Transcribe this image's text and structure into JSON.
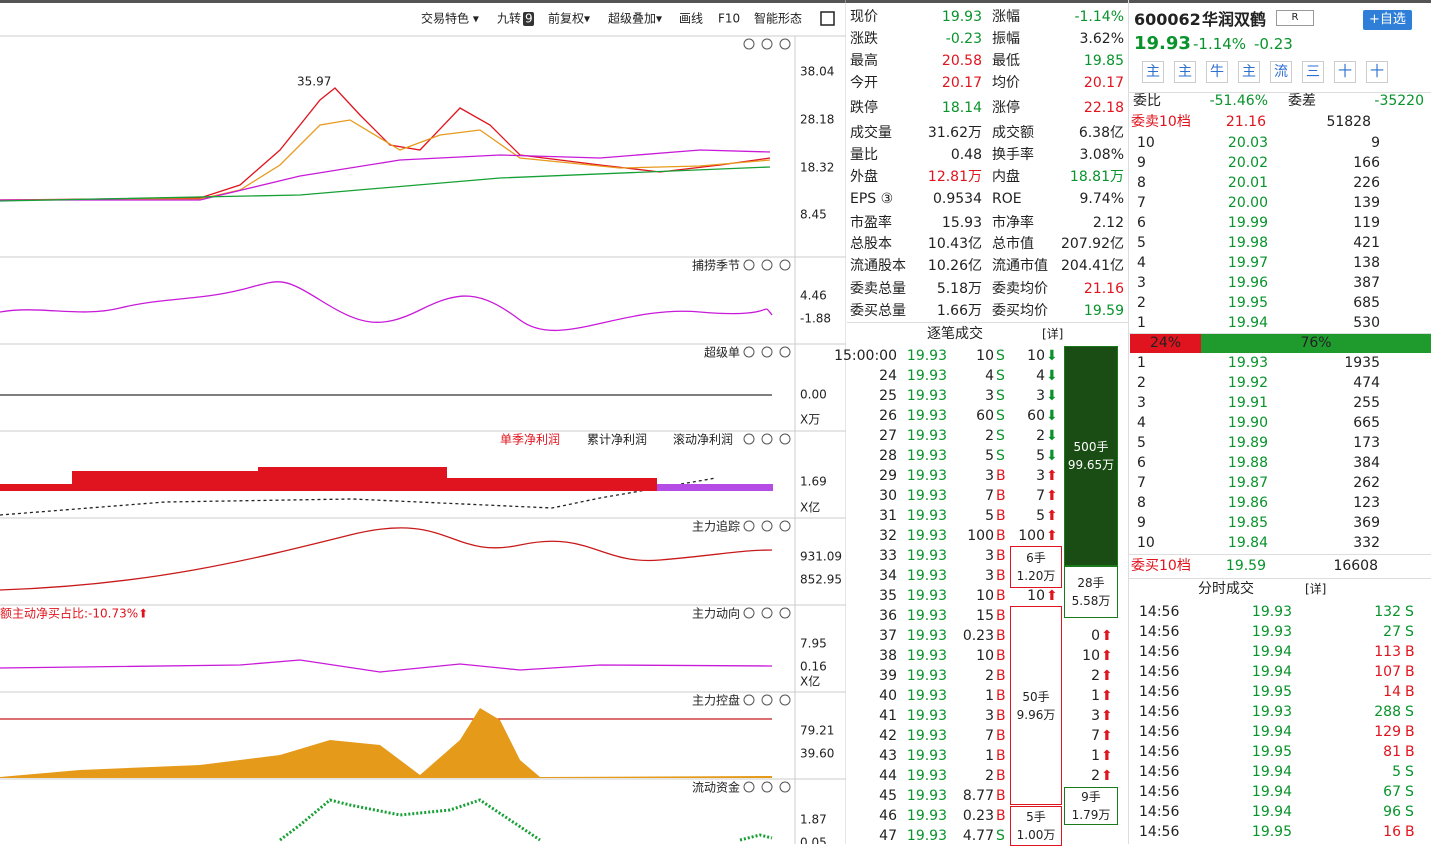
{
  "toolbar": {
    "items": [
      "交易特色 ▾",
      "九转",
      "前复权▾",
      "超级叠加▾",
      "画线",
      "F10",
      "智能形态"
    ],
    "badge": "9"
  },
  "panels": [
    {
      "ticks": [
        "38.04",
        "28.18",
        "18.32",
        "8.45"
      ],
      "annotation": "35.97"
    },
    {
      "title": "捕捞季节",
      "ticks": [
        "4.46",
        "-1.88"
      ]
    },
    {
      "title": "超级单",
      "ticks": [
        "0.00",
        "X万"
      ]
    },
    {
      "titles": [
        "单季净利润",
        "累计净利润",
        "滚动净利润"
      ],
      "ticks": [
        "1.69",
        "X亿"
      ]
    },
    {
      "title": "主力追踪",
      "ticks": [
        "931.09",
        "852.95"
      ]
    },
    {
      "title": "主力动向",
      "note": "额主动净买占比:-10.73%⬆",
      "ticks": [
        "7.95",
        "0.16",
        "X亿"
      ]
    },
    {
      "title": "主力控盘",
      "ticks": [
        "79.21",
        "39.60"
      ]
    },
    {
      "title": "流动资金",
      "ticks": [
        "1.87",
        "0.05"
      ]
    }
  ],
  "quote": [
    [
      [
        "现价",
        "19.93",
        "green"
      ],
      [
        "涨幅",
        "-1.14%",
        "green"
      ]
    ],
    [
      [
        "涨跌",
        "-0.23",
        "green"
      ],
      [
        "振幅",
        "3.62%",
        "black"
      ]
    ],
    [
      [
        "最高",
        "20.58",
        "red"
      ],
      [
        "最低",
        "19.85",
        "green"
      ]
    ],
    [
      [
        "今开",
        "20.17",
        "red"
      ],
      [
        "均价",
        "20.17",
        "red"
      ]
    ],
    [
      [
        "跌停",
        "18.14",
        "green"
      ],
      [
        "涨停",
        "22.18",
        "red"
      ]
    ],
    [
      [
        "成交量",
        "31.62万",
        "black"
      ],
      [
        "成交额",
        "6.38亿",
        "black"
      ]
    ],
    [
      [
        "量比",
        "0.48",
        "black"
      ],
      [
        "换手率",
        "3.08%",
        "black"
      ]
    ],
    [
      [
        "外盘",
        "12.81万",
        "red"
      ],
      [
        "内盘",
        "18.81万",
        "green"
      ]
    ],
    [
      [
        "EPS ③",
        "0.9534",
        "black"
      ],
      [
        "ROE",
        "9.74%",
        "black"
      ]
    ],
    [
      [
        "市盈率",
        "15.93",
        "black"
      ],
      [
        "市净率",
        "2.12",
        "black"
      ]
    ],
    [
      [
        "总股本",
        "10.43亿",
        "black"
      ],
      [
        "总市值",
        "207.92亿",
        "black"
      ]
    ],
    [
      [
        "流通股本",
        "10.26亿",
        "black"
      ],
      [
        "流通市值",
        "204.41亿",
        "black"
      ]
    ],
    [
      [
        "委卖总量",
        "5.18万",
        "black"
      ],
      [
        "委卖均价",
        "21.16",
        "red"
      ]
    ],
    [
      [
        "委买总量",
        "1.66万",
        "black"
      ],
      [
        "委买均价",
        "19.59",
        "green"
      ]
    ]
  ],
  "ticks": {
    "title": "逐笔成交",
    "detail": "[详]",
    "rows": [
      [
        "15:00:00",
        "19.93",
        "10",
        "S",
        "10"
      ],
      [
        "24",
        "19.93",
        "4",
        "S",
        "4"
      ],
      [
        "25",
        "19.93",
        "3",
        "S",
        "3"
      ],
      [
        "26",
        "19.93",
        "60",
        "S",
        "60"
      ],
      [
        "27",
        "19.93",
        "2",
        "S",
        "2"
      ],
      [
        "28",
        "19.93",
        "5",
        "S",
        "5"
      ],
      [
        "29",
        "19.93",
        "3",
        "B",
        "3"
      ],
      [
        "30",
        "19.93",
        "7",
        "B",
        "7"
      ],
      [
        "31",
        "19.93",
        "5",
        "B",
        "5"
      ],
      [
        "32",
        "19.93",
        "100",
        "B",
        "100"
      ],
      [
        "33",
        "19.93",
        "3",
        "B"
      ],
      [
        "34",
        "19.93",
        "3",
        "B"
      ],
      [
        "35",
        "19.93",
        "10",
        "B",
        "10"
      ],
      [
        "36",
        "19.93",
        "15",
        "B"
      ],
      [
        "37",
        "19.93",
        "0.23",
        "B",
        "0"
      ],
      [
        "38",
        "19.93",
        "10",
        "B",
        "10"
      ],
      [
        "39",
        "19.93",
        "2",
        "B",
        "2"
      ],
      [
        "40",
        "19.93",
        "1",
        "B",
        "1"
      ],
      [
        "41",
        "19.93",
        "3",
        "B",
        "3"
      ],
      [
        "42",
        "19.93",
        "7",
        "B",
        "7"
      ],
      [
        "43",
        "19.93",
        "1",
        "B",
        "1"
      ],
      [
        "44",
        "19.93",
        "2",
        "B",
        "2"
      ],
      [
        "45",
        "19.93",
        "8.77",
        "B"
      ],
      [
        "46",
        "19.93",
        "0.23",
        "B"
      ],
      [
        "47",
        "19.93",
        "4.77",
        "S"
      ]
    ],
    "boxes": [
      [
        "500手",
        "99.65万"
      ],
      [
        "28手",
        "5.58万"
      ],
      [
        "6手",
        "1.20万"
      ],
      [
        "50手",
        "9.96万"
      ],
      [
        "9手",
        "1.79万"
      ],
      [
        "5手",
        "1.00万"
      ]
    ]
  },
  "stock": {
    "code": "600062",
    "name": "华润双鹤",
    "tag": "R",
    "button": "+自选",
    "price": "19.93",
    "pct": "-1.14%",
    "chg": "-0.23",
    "tabs": [
      "主",
      "主",
      "牛",
      "主",
      "流",
      "三",
      "十",
      "十"
    ]
  },
  "book": {
    "ratio_label": "委比",
    "ratio": "-51.46%",
    "diff_label": "委差",
    "diff": "-35220",
    "sell_label": "委卖10档",
    "sell_avg": "21.16",
    "sell_total": "51828",
    "sell": [
      [
        "10",
        "20.03",
        "9"
      ],
      [
        "9",
        "20.02",
        "166"
      ],
      [
        "8",
        "20.01",
        "226"
      ],
      [
        "7",
        "20.00",
        "139"
      ],
      [
        "6",
        "19.99",
        "119"
      ],
      [
        "5",
        "19.98",
        "421"
      ],
      [
        "4",
        "19.97",
        "138"
      ],
      [
        "3",
        "19.96",
        "387"
      ],
      [
        "2",
        "19.95",
        "685"
      ],
      [
        "1",
        "19.94",
        "530"
      ]
    ],
    "bar": [
      "24%",
      "76%"
    ],
    "buy": [
      [
        "1",
        "19.93",
        "1935"
      ],
      [
        "2",
        "19.92",
        "474"
      ],
      [
        "3",
        "19.91",
        "255"
      ],
      [
        "4",
        "19.90",
        "665"
      ],
      [
        "5",
        "19.89",
        "173"
      ],
      [
        "6",
        "19.88",
        "384"
      ],
      [
        "7",
        "19.87",
        "262"
      ],
      [
        "8",
        "19.86",
        "123"
      ],
      [
        "9",
        "19.85",
        "369"
      ],
      [
        "10",
        "19.84",
        "332"
      ]
    ],
    "buy_label": "委买10档",
    "buy_avg": "19.59",
    "buy_total": "16608"
  },
  "minute": {
    "title": "分时成交",
    "detail": "[详]",
    "rows": [
      [
        "14:56",
        "19.93",
        "132",
        "S"
      ],
      [
        "14:56",
        "19.93",
        "27",
        "S"
      ],
      [
        "14:56",
        "19.94",
        "113",
        "B"
      ],
      [
        "14:56",
        "19.94",
        "107",
        "B"
      ],
      [
        "14:56",
        "19.95",
        "14",
        "B"
      ],
      [
        "14:56",
        "19.93",
        "288",
        "S"
      ],
      [
        "14:56",
        "19.94",
        "129",
        "B"
      ],
      [
        "14:56",
        "19.95",
        "81",
        "B"
      ],
      [
        "14:56",
        "19.94",
        "5",
        "S"
      ],
      [
        "14:56",
        "19.94",
        "67",
        "S"
      ],
      [
        "14:56",
        "19.94",
        "96",
        "S"
      ],
      [
        "14:56",
        "19.95",
        "16",
        "B"
      ]
    ]
  }
}
